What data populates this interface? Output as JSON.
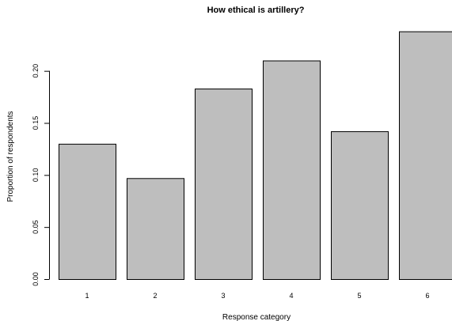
{
  "chart_data": {
    "type": "bar",
    "title": "How ethical is artillery?",
    "xlabel": "Response category",
    "ylabel": "Proportion of respondents",
    "categories": [
      "1",
      "2",
      "3",
      "4",
      "5",
      "6"
    ],
    "values": [
      0.13,
      0.097,
      0.183,
      0.21,
      0.142,
      0.238
    ],
    "ylim": [
      0,
      0.24
    ],
    "yticks": [
      "0.00",
      "0.05",
      "0.10",
      "0.15",
      "0.20"
    ],
    "grid": false,
    "legend": "none",
    "bar_color": "#bebebe",
    "bar_border_color": "#000000"
  }
}
